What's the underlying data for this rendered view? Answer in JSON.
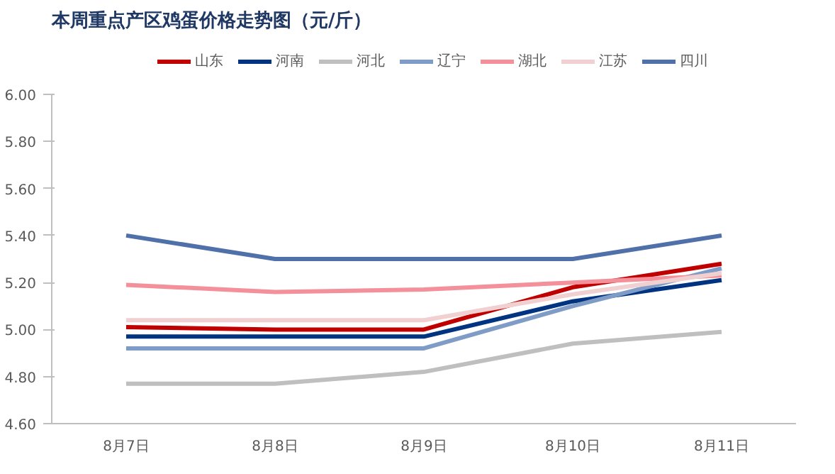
{
  "chart_data": {
    "type": "line",
    "title": "本周重点产区鸡蛋价格走势图（元/斤）",
    "categories": [
      "8月7日",
      "8月8日",
      "8月9日",
      "8月10日",
      "8月11日"
    ],
    "ylim": [
      4.6,
      6.0
    ],
    "yticks": [
      {
        "value": 4.6,
        "label": "4.60"
      },
      {
        "value": 4.8,
        "label": "4.80"
      },
      {
        "value": 5.0,
        "label": "5.00"
      },
      {
        "value": 5.2,
        "label": "5.20"
      },
      {
        "value": 5.4,
        "label": "5.40"
      },
      {
        "value": 5.6,
        "label": "5.60"
      },
      {
        "value": 5.8,
        "label": "5.80"
      },
      {
        "value": 6.0,
        "label": "6.00"
      }
    ],
    "grid": false,
    "legend": "top",
    "marker": "none",
    "line_style": "solid",
    "series": [
      {
        "name": "山东",
        "color": "#c00000",
        "values": [
          5.01,
          5.0,
          5.0,
          5.18,
          5.28
        ]
      },
      {
        "name": "河南",
        "color": "#003380",
        "values": [
          4.97,
          4.97,
          4.97,
          5.12,
          5.21
        ]
      },
      {
        "name": "河北",
        "color": "#bfbfbf",
        "values": [
          4.77,
          4.77,
          4.82,
          4.94,
          4.99
        ]
      },
      {
        "name": "辽宁",
        "color": "#7f9cc7",
        "values": [
          4.92,
          4.92,
          4.92,
          5.1,
          5.26
        ]
      },
      {
        "name": "湖北",
        "color": "#f4909a",
        "values": [
          5.19,
          5.16,
          5.17,
          5.2,
          5.23
        ]
      },
      {
        "name": "江苏",
        "color": "#f0d0d0",
        "values": [
          5.04,
          5.04,
          5.04,
          5.15,
          5.24
        ]
      },
      {
        "name": "四川",
        "color": "#4f70a8",
        "values": [
          5.4,
          5.3,
          5.3,
          5.3,
          5.4
        ]
      }
    ]
  }
}
